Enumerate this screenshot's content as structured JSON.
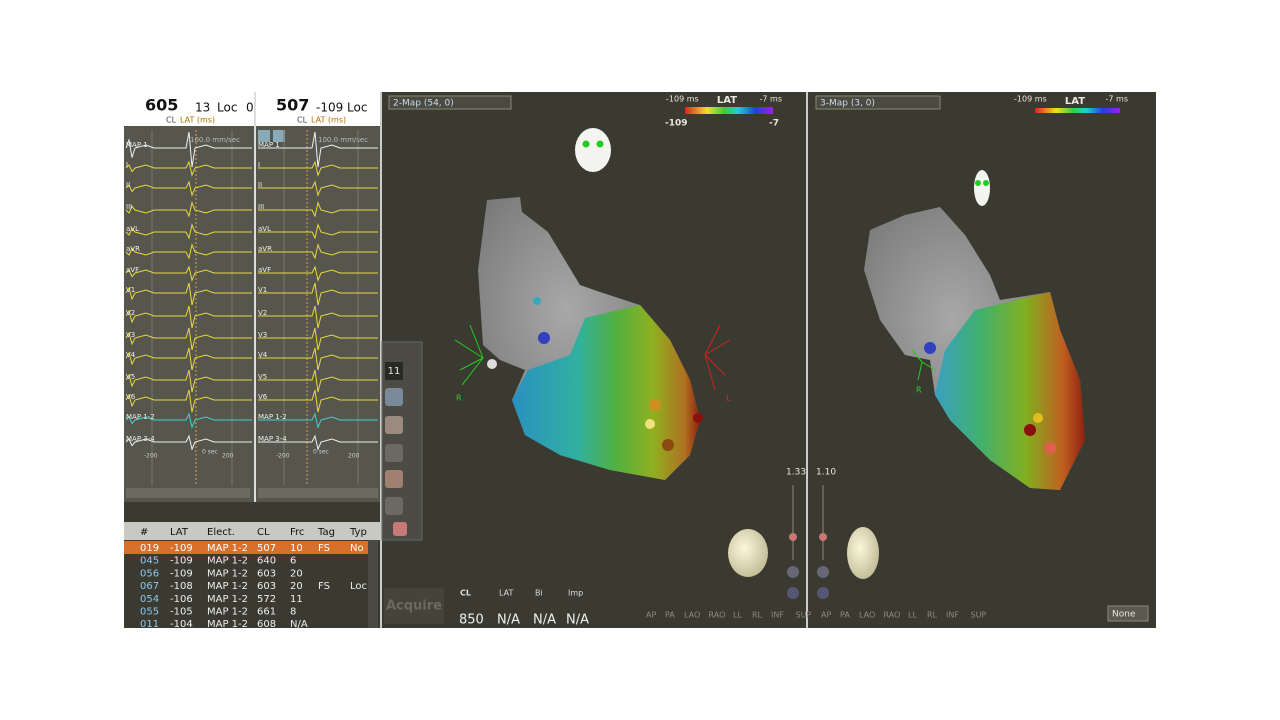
{
  "ecg_panels": [
    {
      "cl": "605",
      "lat": "13",
      "loc": "Loc",
      "extra": "0",
      "cl_label": "CL",
      "lat_label": "LAT (ms)",
      "speed": "100.0 mm/sec"
    },
    {
      "cl": "507",
      "lat": "-109",
      "loc": "Loc",
      "cl_label": "CL",
      "lat_label": "LAT (ms)",
      "speed": "100.0 mm/sec"
    }
  ],
  "channels": [
    "MAP 1",
    "I",
    "II",
    "III",
    "aVL",
    "aVR",
    "aVF",
    "V1",
    "V2",
    "V3",
    "V4",
    "V5",
    "V6",
    "MAP 1-2",
    "MAP 3-4"
  ],
  "time_axis": [
    "-200",
    "0 sec",
    "200"
  ],
  "table": {
    "headers": [
      "#",
      "LAT",
      "Elect.",
      "CL",
      "Frc",
      "Tag",
      "Typ"
    ],
    "rows": [
      [
        "019",
        "-109",
        "MAP 1-2",
        "507",
        "10",
        "FS",
        "No"
      ],
      [
        "045",
        "-109",
        "MAP 1-2",
        "640",
        "6",
        "",
        ""
      ],
      [
        "056",
        "-109",
        "MAP 1-2",
        "603",
        "20",
        "",
        ""
      ],
      [
        "067",
        "-108",
        "MAP 1-2",
        "603",
        "20",
        "FS",
        "Loc"
      ],
      [
        "054",
        "-106",
        "MAP 1-2",
        "572",
        "11",
        "",
        ""
      ],
      [
        "055",
        "-105",
        "MAP 1-2",
        "661",
        "8",
        "",
        ""
      ],
      [
        "011",
        "-104",
        "MAP 1-2",
        "608",
        "N/A",
        "",
        ""
      ]
    ]
  },
  "toolbar": {
    "count": "11"
  },
  "maps": [
    {
      "title": "2-Map (54, 0)",
      "scale_min": "-109 ms",
      "scale_label": "LAT",
      "scale_max": "-7 ms",
      "bar_min": "-109",
      "bar_max": "-7",
      "zoom": "1.33",
      "orient_left": "R",
      "orient_right": "L",
      "views": [
        "AP",
        "PA",
        "LAO",
        "RAO",
        "LL",
        "RL",
        "INF",
        "SUP"
      ]
    },
    {
      "title": "3-Map (3, 0)",
      "scale_min": "-109 ms",
      "scale_label": "LAT",
      "scale_max": "-7 ms",
      "zoom": "1.10",
      "orient_left": "R",
      "display": "None",
      "views": [
        "AP",
        "PA",
        "LAO",
        "RAO",
        "LL",
        "RL",
        "INF",
        "SUP"
      ]
    }
  ],
  "acquire": {
    "button": "Acquire",
    "labels": [
      "CL",
      "LAT",
      "Bi",
      "Imp"
    ],
    "values": [
      "850",
      "N/A",
      "N/A",
      "N/A"
    ]
  }
}
